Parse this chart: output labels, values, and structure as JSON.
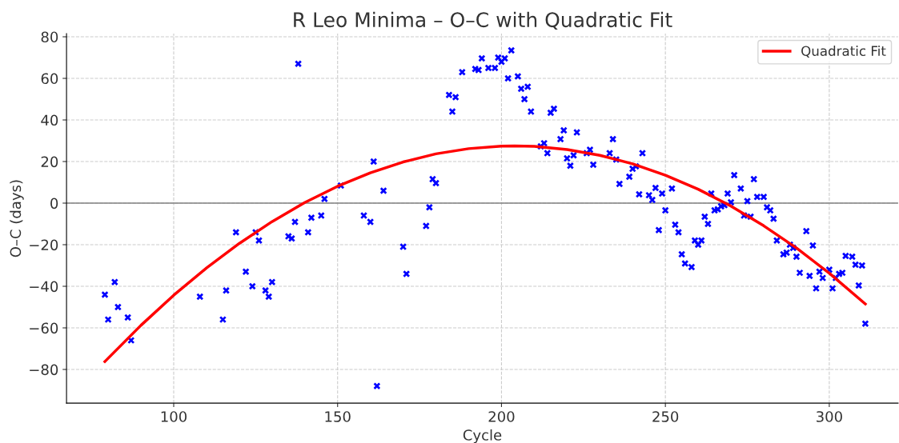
{
  "chart_data": {
    "type": "scatter",
    "title": "R Leo Minima – O–C with Quadratic Fit",
    "xlabel": "Cycle",
    "ylabel": "O–C (days)",
    "xlim": [
      67.3,
      321
    ],
    "ylim": [
      -96.2,
      81.5
    ],
    "xticks": [
      100,
      150,
      200,
      250,
      300
    ],
    "yticks": [
      {
        "value": -80,
        "label": "−80"
      },
      {
        "value": -60,
        "label": "−60"
      },
      {
        "value": -40,
        "label": "−40"
      },
      {
        "value": -20,
        "label": "−20"
      },
      0,
      20,
      40,
      60,
      80
    ],
    "grid": true,
    "legend": "top right",
    "ref_lines": [
      {
        "axis": "y",
        "value": 0,
        "label": null,
        "color": "#808080",
        "line_style": "solid"
      }
    ],
    "series": [
      {
        "color": "#0000ff",
        "marker": "cross",
        "x": [
          79,
          80,
          82,
          83,
          86,
          87,
          108,
          115,
          116,
          119,
          122,
          124,
          125,
          126,
          128,
          129,
          130,
          135,
          136,
          137,
          138,
          141,
          142,
          145,
          146,
          151,
          158,
          160,
          161,
          162,
          164,
          170,
          171,
          177,
          178,
          179,
          180,
          184,
          185,
          186,
          188,
          192,
          193,
          194,
          196,
          198,
          199,
          200,
          201,
          202,
          203,
          205,
          206,
          207,
          208,
          209,
          212,
          213,
          214,
          215,
          216,
          218,
          219,
          220,
          221,
          222,
          223,
          226,
          227,
          228,
          233,
          234,
          235,
          236,
          239,
          240,
          241,
          242,
          243,
          245,
          246,
          247,
          248,
          249,
          250,
          252,
          253,
          254,
          255,
          256,
          258,
          259,
          260,
          261,
          262,
          263,
          264,
          265,
          266,
          267,
          268,
          269,
          270,
          271,
          273,
          274,
          275,
          276,
          277,
          278,
          280,
          281,
          282,
          283,
          284,
          286,
          287,
          288,
          289,
          290,
          291,
          293,
          294,
          295,
          296,
          297,
          298,
          300,
          301,
          302,
          303,
          304,
          305,
          307,
          308,
          309,
          310,
          311
        ],
        "values": [
          -44,
          -56,
          -38,
          -50,
          -55,
          -66,
          -45,
          -56,
          -42,
          -14,
          -33,
          -40,
          -14,
          -18,
          -42,
          -45,
          -38,
          -16,
          -17,
          -9,
          67,
          -14,
          -7,
          -6,
          2,
          8.5,
          -6,
          -9,
          20,
          -88,
          6,
          -21,
          -34,
          -11,
          -2,
          11.5,
          9.6,
          52,
          44,
          51,
          63,
          64.5,
          64,
          69.6,
          65,
          65,
          70,
          68,
          69.6,
          60,
          73.5,
          61,
          55,
          50,
          56,
          44,
          27.3,
          28.8,
          24,
          43.5,
          45.4,
          30.8,
          35,
          21.5,
          18,
          23,
          34,
          24,
          25.7,
          18.5,
          24,
          30.8,
          21,
          9.2,
          12.7,
          16.5,
          17.7,
          4.2,
          24,
          3.8,
          1.5,
          7.3,
          -13,
          4.6,
          -3.5,
          7,
          -10.4,
          -14,
          -24.6,
          -29,
          -30.8,
          -18,
          -20,
          -18,
          -6.5,
          -10,
          4.6,
          -3.5,
          -3,
          -1.5,
          -1,
          4.6,
          0.4,
          13.5,
          7,
          -6,
          1,
          -6.5,
          11.5,
          3,
          3,
          -2,
          -3.5,
          -7.5,
          -18,
          -24.6,
          -23.8,
          -20,
          -21.5,
          -25.8,
          -33.5,
          -13.5,
          -35,
          -20.4,
          -41,
          -33,
          -36,
          -32,
          -41,
          -36,
          -34,
          -33.5,
          -25.4,
          -25.8,
          -29.6,
          -39.6,
          -30,
          -58
        ]
      },
      {
        "type": "line",
        "name": "Quadratic Fit",
        "color": "#ff0000",
        "line_style": "solid",
        "marker": "none",
        "x": [
          79,
          90,
          100,
          110,
          120,
          130,
          140,
          150,
          160,
          170,
          180,
          190,
          200,
          204,
          210,
          220,
          230,
          240,
          250,
          260,
          270,
          280,
          290,
          300,
          311
        ],
        "values": [
          -76.2,
          -58.8,
          -44.3,
          -31.2,
          -19.4,
          -8.9,
          0.3,
          8.1,
          14.6,
          19.8,
          23.7,
          26.2,
          27.4,
          27.5,
          27.3,
          25.8,
          23.0,
          18.9,
          13.4,
          6.7,
          -1.4,
          -10.9,
          -21.6,
          -33.7,
          -48.5
        ]
      }
    ]
  }
}
